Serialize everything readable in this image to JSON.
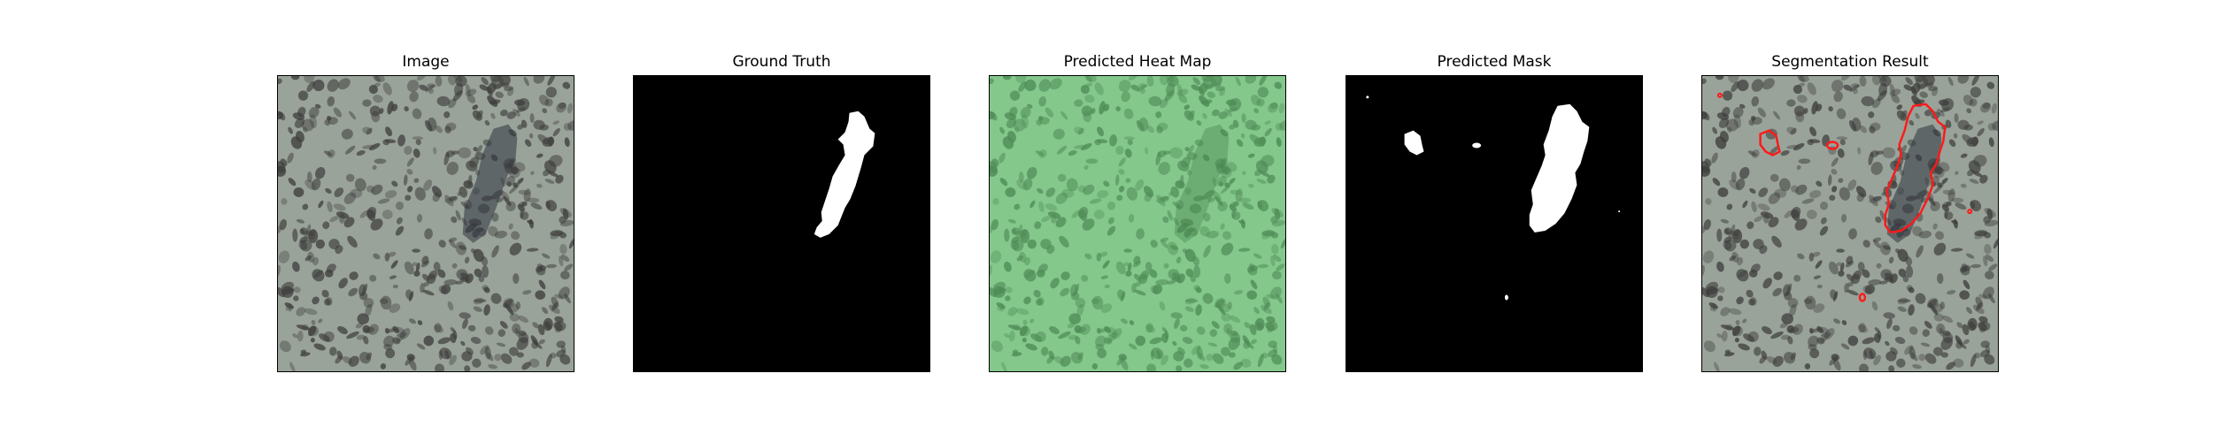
{
  "panels": [
    {
      "title": "Image"
    },
    {
      "title": "Ground Truth"
    },
    {
      "title": "Predicted Heat Map"
    },
    {
      "title": "Predicted Mask"
    },
    {
      "title": "Segmentation Result"
    }
  ],
  "colors": {
    "texture_base": "#9aa39a",
    "texture_spots": "#3e3e3c",
    "defect": "#2f3440",
    "mask_bg": "#000000",
    "mask_fg": "#ffffff",
    "heat_tint": "#7fd08a",
    "contour": "#ff1a1a"
  }
}
